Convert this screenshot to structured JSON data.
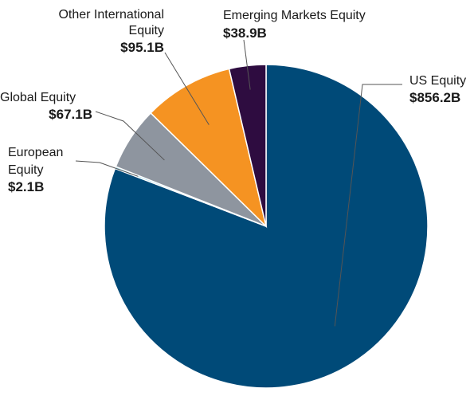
{
  "chart_data": {
    "type": "pie",
    "slices": [
      {
        "name": "US Equity",
        "value": 856.2,
        "value_label": "$856.2B",
        "color": "#004a78"
      },
      {
        "name": "European Equity",
        "value": 2.1,
        "value_label": "$2.1B",
        "color": "#8fd3e8"
      },
      {
        "name": "Global Equity",
        "value": 67.1,
        "value_label": "$67.1B",
        "color": "#8e959f"
      },
      {
        "name": "Other International Equity",
        "value": 95.1,
        "value_label": "$95.1B",
        "color": "#f59322"
      },
      {
        "name": "Emerging Markets Equity",
        "value": 38.9,
        "value_label": "$38.9B",
        "color": "#2e0c40"
      }
    ],
    "start_angle": "12 o'clock",
    "direction": "clockwise"
  },
  "labels": {
    "us_equity": {
      "lines": [
        "US Equity"
      ],
      "value": "$856.2B"
    },
    "emerging": {
      "lines": [
        "Emerging Markets Equity"
      ],
      "value": "$38.9B"
    },
    "other_intl": {
      "lines": [
        "Other International",
        "Equity"
      ],
      "value": "$95.1B"
    },
    "global": {
      "lines": [
        "Global Equity"
      ],
      "value": "$67.1B"
    },
    "european": {
      "lines": [
        "European",
        "Equity"
      ],
      "value": "$2.1B"
    }
  }
}
